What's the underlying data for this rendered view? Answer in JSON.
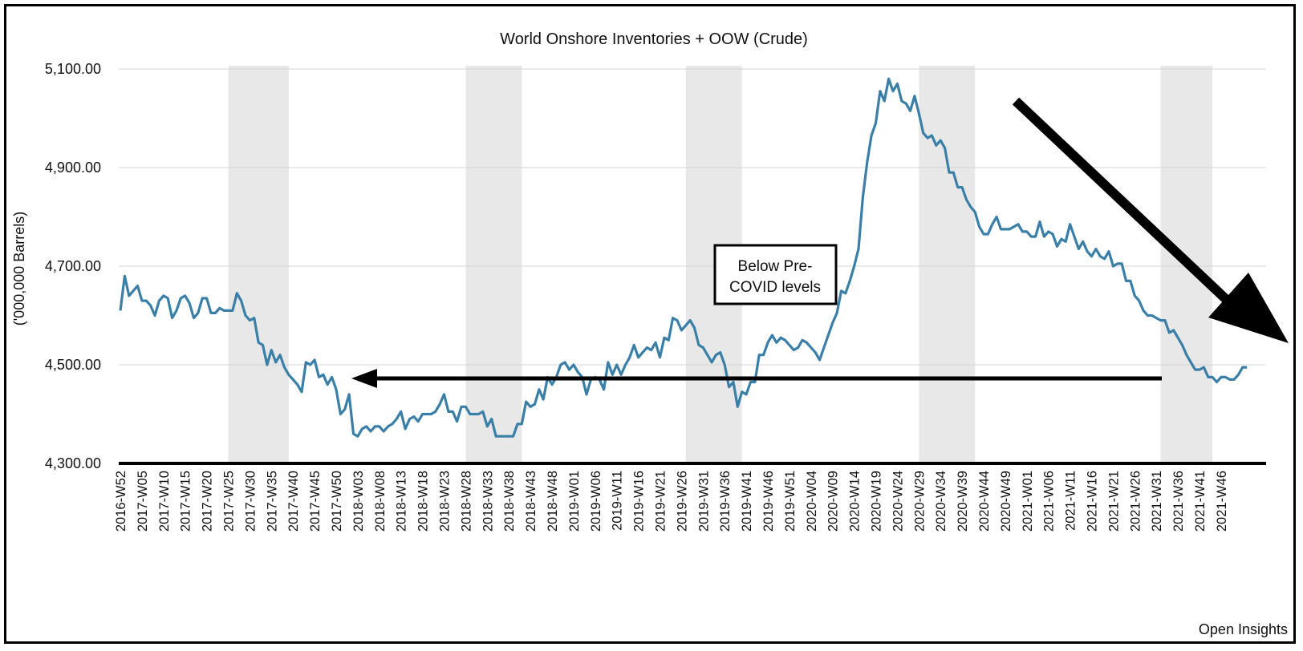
{
  "chart_data": {
    "type": "line",
    "title": "World Onshore Inventories + OOW (Crude)",
    "ylabel": "('000,000 Barrels)",
    "xlabel": "",
    "ylim": [
      4300,
      5100
    ],
    "yticks": [
      "4,300.00",
      "4,500.00",
      "4,700.00",
      "4,900.00",
      "5,100.00"
    ],
    "x_tick_labels": [
      "2016-W52",
      "2017-W05",
      "2017-W10",
      "2017-W15",
      "2017-W20",
      "2017-W25",
      "2017-W30",
      "2017-W35",
      "2017-W40",
      "2017-W45",
      "2017-W50",
      "2018-W03",
      "2018-W08",
      "2018-W13",
      "2018-W18",
      "2018-W23",
      "2018-W28",
      "2018-W33",
      "2018-W38",
      "2018-W43",
      "2018-W48",
      "2019-W01",
      "2019-W06",
      "2019-W11",
      "2019-W16",
      "2019-W21",
      "2019-W26",
      "2019-W31",
      "2019-W36",
      "2019-W41",
      "2019-W46",
      "2019-W51",
      "2020-W04",
      "2020-W09",
      "2020-W14",
      "2020-W19",
      "2020-W24",
      "2020-W29",
      "2020-W34",
      "2020-W39",
      "2020-W44",
      "2020-W49",
      "2021-W01",
      "2021-W06",
      "2021-W11",
      "2021-W16",
      "2021-W21",
      "2021-W26",
      "2021-W31",
      "2021-W36",
      "2021-W41",
      "2021-W46"
    ],
    "series": [
      {
        "color": "#3a7fa8",
        "values": [
          4610,
          4680,
          4640,
          4650,
          4660,
          4630,
          4630,
          4620,
          4600,
          4630,
          4640,
          4635,
          4595,
          4610,
          4635,
          4640,
          4625,
          4595,
          4605,
          4635,
          4635,
          4605,
          4605,
          4615,
          4610,
          4610,
          4610,
          4645,
          4630,
          4600,
          4590,
          4595,
          4545,
          4540,
          4500,
          4530,
          4505,
          4520,
          4495,
          4480,
          4470,
          4460,
          4445,
          4505,
          4500,
          4510,
          4475,
          4480,
          4460,
          4475,
          4450,
          4400,
          4410,
          4440,
          4360,
          4355,
          4370,
          4375,
          4365,
          4375,
          4375,
          4365,
          4375,
          4380,
          4390,
          4405,
          4370,
          4390,
          4395,
          4385,
          4400,
          4400,
          4400,
          4405,
          4420,
          4440,
          4405,
          4405,
          4385,
          4415,
          4415,
          4400,
          4400,
          4400,
          4405,
          4375,
          4390,
          4355,
          4355,
          4355,
          4355,
          4355,
          4380,
          4380,
          4425,
          4415,
          4420,
          4450,
          4430,
          4475,
          4460,
          4475,
          4500,
          4505,
          4490,
          4500,
          4485,
          4475,
          4440,
          4470,
          4475,
          4470,
          4450,
          4505,
          4480,
          4500,
          4480,
          4500,
          4515,
          4540,
          4515,
          4525,
          4535,
          4530,
          4545,
          4515,
          4555,
          4550,
          4595,
          4590,
          4570,
          4580,
          4590,
          4575,
          4540,
          4535,
          4520,
          4505,
          4520,
          4525,
          4500,
          4455,
          4465,
          4415,
          4445,
          4440,
          4465,
          4465,
          4520,
          4520,
          4545,
          4560,
          4545,
          4555,
          4550,
          4540,
          4530,
          4535,
          4550,
          4545,
          4535,
          4525,
          4510,
          4535,
          4560,
          4585,
          4605,
          4650,
          4645,
          4670,
          4700,
          4735,
          4840,
          4910,
          4965,
          4990,
          5055,
          5035,
          5080,
          5055,
          5070,
          5035,
          5030,
          5015,
          5045,
          5010,
          4970,
          4960,
          4965,
          4945,
          4955,
          4940,
          4890,
          4890,
          4860,
          4860,
          4835,
          4820,
          4810,
          4780,
          4765,
          4765,
          4785,
          4800,
          4775,
          4775,
          4775,
          4780,
          4785,
          4770,
          4770,
          4760,
          4760,
          4790,
          4760,
          4770,
          4765,
          4740,
          4755,
          4750,
          4785,
          4760,
          4735,
          4750,
          4730,
          4720,
          4735,
          4720,
          4715,
          4730,
          4700,
          4705,
          4705,
          4670,
          4670,
          4640,
          4630,
          4610,
          4600,
          4600,
          4595,
          4590,
          4590,
          4565,
          4570,
          4555,
          4540,
          4520,
          4505,
          4490,
          4490,
          4495,
          4475,
          4475,
          4465,
          4475,
          4475,
          4470,
          4470,
          4480,
          4495,
          4495
        ]
      }
    ],
    "shaded_periods": [
      [
        "2017-W25",
        "2017-W39"
      ],
      [
        "2018-W28",
        "2018-W41"
      ],
      [
        "2019-W27",
        "2019-W40"
      ],
      [
        "2020-W29",
        "2020-W42"
      ],
      [
        "2021-W32",
        "2021-W44"
      ]
    ],
    "grid": true,
    "annotations": {
      "note_lines": [
        "Below Pre-",
        "COVID levels"
      ],
      "credit": "Open Insights"
    }
  }
}
